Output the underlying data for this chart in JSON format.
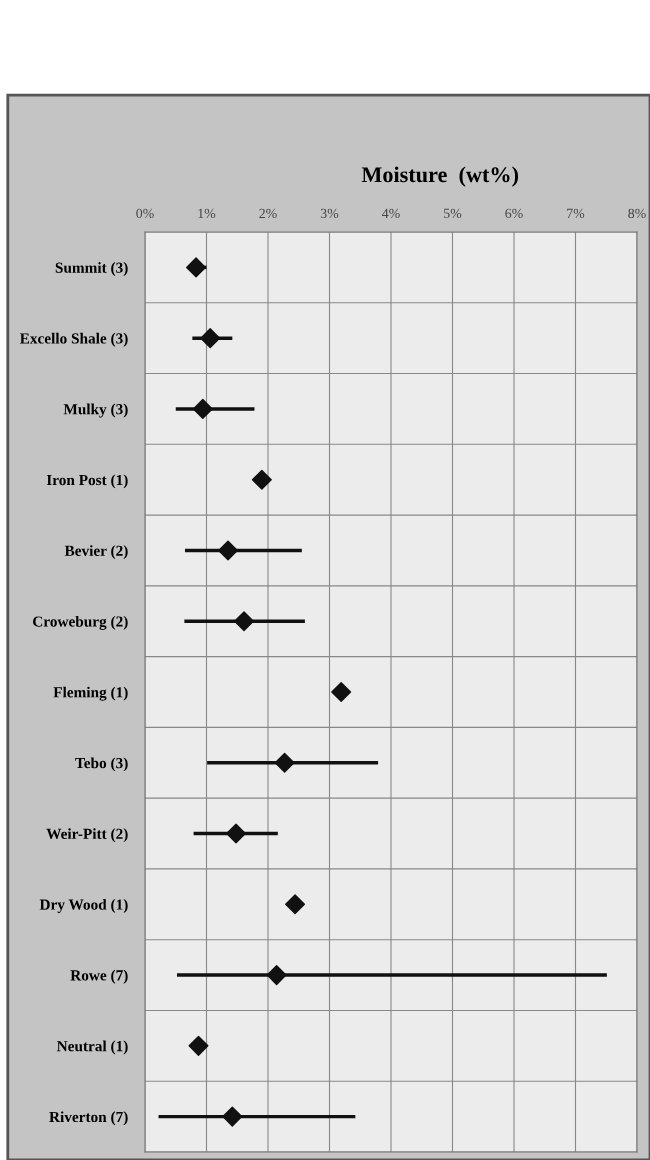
{
  "chart_data": {
    "type": "scatter",
    "orientation": "horizontal",
    "title": "Moisture  (wt%)",
    "categories": [
      "Summit (3)",
      "Excello Shale (3)",
      "Mulky (3)",
      "Iron Post (1)",
      "Bevier (2)",
      "Croweburg (2)",
      "Fleming (1)",
      "Tebo (3)",
      "Weir-Pitt (2)",
      "Dry Wood (1)",
      "Rowe (7)",
      "Neutral (1)",
      "Riverton (7)"
    ],
    "values": [
      0.83,
      1.06,
      0.94,
      1.9,
      1.35,
      1.61,
      3.19,
      2.27,
      1.48,
      2.44,
      2.14,
      0.87,
      1.42
    ],
    "errors": [
      [
        0.7,
        1.0
      ],
      [
        0.77,
        1.42
      ],
      [
        0.5,
        1.78
      ],
      null,
      [
        0.65,
        2.55
      ],
      [
        0.64,
        2.6
      ],
      null,
      [
        1.01,
        3.79
      ],
      [
        0.79,
        2.16
      ],
      null,
      [
        0.52,
        7.51
      ],
      null,
      [
        0.22,
        3.42
      ]
    ],
    "color": "#111111",
    "marker": "diamond",
    "xlim": [
      0,
      8
    ],
    "xticks": [
      {
        "value": 0,
        "label": "0%"
      },
      {
        "value": 1,
        "label": "1%"
      },
      {
        "value": 2,
        "label": "2%"
      },
      {
        "value": 3,
        "label": "3%"
      },
      {
        "value": 4,
        "label": "4%"
      },
      {
        "value": 5,
        "label": "5%"
      },
      {
        "value": 6,
        "label": "6%"
      },
      {
        "value": 7,
        "label": "7%"
      },
      {
        "value": 8,
        "label": "8%"
      }
    ],
    "grid": true
  }
}
